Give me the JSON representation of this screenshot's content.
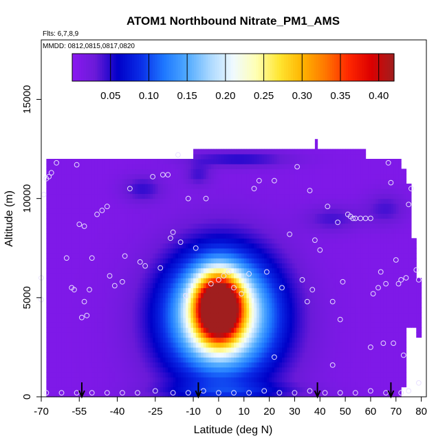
{
  "chart_data": {
    "type": "heatmap",
    "title": "ATOM1 Northbound Nitrate_PM1_AMS",
    "annotations": [
      "Flts: 6,7,8,9",
      "MMDD: 0812,0815,0817,0820"
    ],
    "xlabel": "Latitude (deg N)",
    "ylabel": "Altitude (m)",
    "xlim": [
      -70,
      82
    ],
    "ylim": [
      0,
      18000
    ],
    "x_ticks": [
      "-70",
      "-55",
      "-40",
      "-25",
      "-10",
      "0",
      "10",
      "20",
      "30",
      "40",
      "50",
      "60",
      "70",
      "80"
    ],
    "y_ticks": [
      "0",
      "5000",
      "10000",
      "15000"
    ],
    "x_tick_values": [
      -70,
      -55,
      -40,
      -25,
      -10,
      0,
      10,
      20,
      30,
      40,
      50,
      60,
      70,
      80
    ],
    "y_tick_values": [
      0,
      5000,
      10000,
      15000
    ],
    "colorbar": {
      "range": [
        0,
        0.42
      ],
      "ticks": [
        "0.05",
        "0.10",
        "0.15",
        "0.20",
        "0.25",
        "0.30",
        "0.35",
        "0.40"
      ],
      "tick_values": [
        0.05,
        0.1,
        0.15,
        0.2,
        0.25,
        0.3,
        0.35,
        0.4
      ],
      "colors": [
        "#8a19f0",
        "#6a1ad8",
        "#0000c8",
        "#0a2ee8",
        "#1e78ff",
        "#50aaff",
        "#aad8ff",
        "#f0faff",
        "#ffffb4",
        "#ffe632",
        "#ffb400",
        "#ff7800",
        "#ff2800",
        "#dc0000",
        "#a01e1e"
      ]
    },
    "background_value": 0.01,
    "features": [
      {
        "lat": 0,
        "alt": 4500,
        "sx": 6,
        "sy": 1100,
        "value": 0.38
      },
      {
        "lat": 1,
        "alt": 4300,
        "sx": 14,
        "sy": 2000,
        "value": 0.2
      },
      {
        "lat": 1,
        "alt": 3500,
        "sx": 20,
        "sy": 2700,
        "value": 0.06
      },
      {
        "lat": -30,
        "alt": 10500,
        "sx": 6,
        "sy": 500,
        "value": 0.035
      },
      {
        "lat": -8,
        "alt": 11200,
        "sx": 4,
        "sy": 400,
        "value": 0.03
      },
      {
        "lat": 45,
        "alt": 9000,
        "sx": 8,
        "sy": 500,
        "value": 0.03
      },
      {
        "lat": 66,
        "alt": 9500,
        "sx": 6,
        "sy": 600,
        "value": 0.03
      },
      {
        "lat": 8,
        "alt": 12000,
        "sx": 15,
        "sy": 300,
        "value": 0.04
      },
      {
        "lat": 5,
        "alt": 300,
        "sx": 20,
        "sy": 300,
        "value": 0.035
      }
    ],
    "coverage": [
      {
        "lat_min": -68,
        "lat_max": 72,
        "alt_min": 0,
        "alt_max": 11900
      },
      {
        "lat_min": -10,
        "lat_max": 58,
        "alt_min": 11900,
        "alt_max": 12500
      },
      {
        "lat_min": 72,
        "lat_max": 74,
        "alt_min": 400,
        "alt_max": 11500
      },
      {
        "lat_min": 74,
        "lat_max": 76,
        "alt_min": 3500,
        "alt_max": 10700
      },
      {
        "lat_min": 76,
        "lat_max": 78,
        "alt_min": 3500,
        "alt_max": 8000
      },
      {
        "lat_min": 78,
        "lat_max": 80,
        "alt_min": 3000,
        "alt_max": 6000
      },
      {
        "lat_min": 38,
        "lat_max": 39,
        "alt_min": 12500,
        "alt_max": 13000
      }
    ],
    "flight_markers_lat": [
      -54,
      -8,
      39,
      68
    ],
    "sample_points": [
      [
        -69,
        10200
      ],
      [
        -68,
        11000
      ],
      [
        -67,
        11100
      ],
      [
        -66,
        11300
      ],
      [
        -64,
        11800
      ],
      [
        -70,
        6000
      ],
      [
        -70,
        4900
      ],
      [
        -60,
        7000
      ],
      [
        -58,
        5500
      ],
      [
        -57,
        5400
      ],
      [
        -56,
        11700
      ],
      [
        -55,
        8700
      ],
      [
        -53,
        8600
      ],
      [
        -54,
        4000
      ],
      [
        -52,
        4100
      ],
      [
        -53,
        4800
      ],
      [
        -51,
        5400
      ],
      [
        -50,
        7000
      ],
      [
        -48,
        9200
      ],
      [
        -46,
        9400
      ],
      [
        -44,
        9600
      ],
      [
        -43,
        6100
      ],
      [
        -41,
        5600
      ],
      [
        -38,
        5800
      ],
      [
        -37,
        7100
      ],
      [
        -35,
        10500
      ],
      [
        -31,
        6800
      ],
      [
        -29,
        6600
      ],
      [
        -26,
        11100
      ],
      [
        -23,
        6500
      ],
      [
        -22,
        11200
      ],
      [
        -19,
        8000
      ],
      [
        -18,
        8300
      ],
      [
        -16,
        12200
      ],
      [
        -15,
        7800
      ],
      [
        -20,
        11200
      ],
      [
        -13,
        5100
      ],
      [
        -12,
        10000
      ],
      [
        -9,
        7500
      ],
      [
        -5,
        10000
      ],
      [
        -3,
        5700
      ],
      [
        0,
        5900
      ],
      [
        2,
        6100
      ],
      [
        4,
        6300
      ],
      [
        6,
        5500
      ],
      [
        9,
        5200
      ],
      [
        12,
        6200
      ],
      [
        14,
        10500
      ],
      [
        16,
        10900
      ],
      [
        19,
        6300
      ],
      [
        22,
        10900
      ],
      [
        25,
        5500
      ],
      [
        28,
        8200
      ],
      [
        31,
        11600
      ],
      [
        33,
        5900
      ],
      [
        35,
        4800
      ],
      [
        36,
        10400
      ],
      [
        37,
        5400
      ],
      [
        38,
        7900
      ],
      [
        40,
        7400
      ],
      [
        43,
        9600
      ],
      [
        45,
        4800
      ],
      [
        47,
        8800
      ],
      [
        48,
        3900
      ],
      [
        49,
        5800
      ],
      [
        51,
        9200
      ],
      [
        52,
        9100
      ],
      [
        53,
        9000
      ],
      [
        54,
        9000
      ],
      [
        56,
        9000
      ],
      [
        58,
        9000
      ],
      [
        60,
        9000
      ],
      [
        61,
        5200
      ],
      [
        63,
        5500
      ],
      [
        64,
        6300
      ],
      [
        66,
        5700
      ],
      [
        67,
        11800
      ],
      [
        68,
        10800
      ],
      [
        69,
        2700
      ],
      [
        70,
        6900
      ],
      [
        71,
        5700
      ],
      [
        72,
        5900
      ],
      [
        73,
        2100
      ],
      [
        74,
        6000
      ],
      [
        75,
        9700
      ],
      [
        76,
        10500
      ],
      [
        78,
        6400
      ],
      [
        79,
        5900
      ],
      [
        -68,
        200
      ],
      [
        -62,
        200
      ],
      [
        -56,
        200
      ],
      [
        -50,
        200
      ],
      [
        -44,
        200
      ],
      [
        -38,
        200
      ],
      [
        -32,
        200
      ],
      [
        -25,
        300
      ],
      [
        -18,
        200
      ],
      [
        -12,
        200
      ],
      [
        -6,
        300
      ],
      [
        0,
        200
      ],
      [
        6,
        200
      ],
      [
        12,
        200
      ],
      [
        18,
        300
      ],
      [
        24,
        200
      ],
      [
        30,
        200
      ],
      [
        36,
        300
      ],
      [
        42,
        200
      ],
      [
        48,
        200
      ],
      [
        54,
        200
      ],
      [
        60,
        300
      ],
      [
        66,
        200
      ],
      [
        72,
        200
      ],
      [
        75,
        300
      ],
      [
        79,
        700
      ],
      [
        60,
        2500
      ],
      [
        65,
        2700
      ],
      [
        22,
        2000
      ],
      [
        45,
        1600
      ]
    ]
  }
}
